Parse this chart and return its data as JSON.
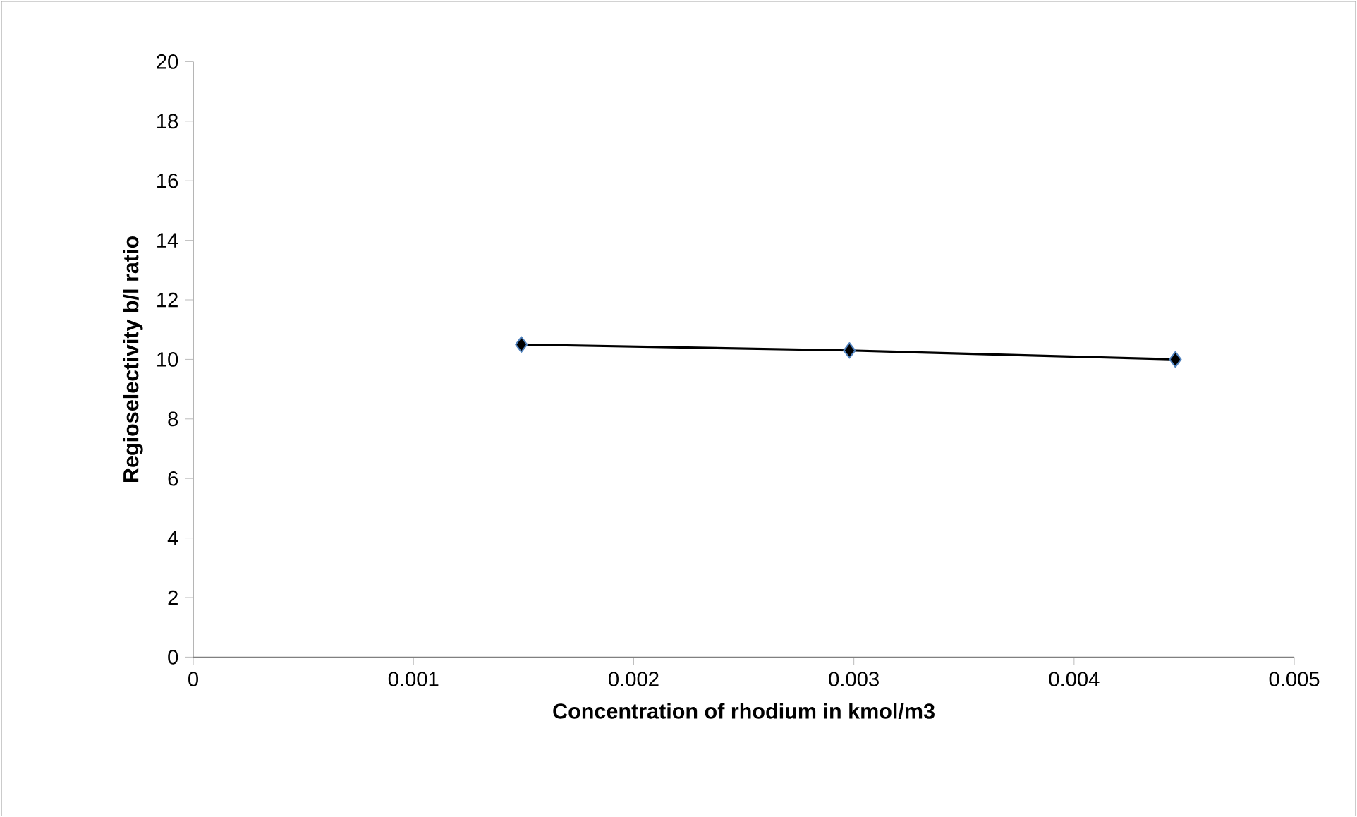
{
  "chart_data": {
    "type": "line",
    "xlabel": "Concentration of rhodium in kmol/m3",
    "ylabel": "Regioselectivity b/l ratio",
    "x": [
      0.00149,
      0.00298,
      0.00446
    ],
    "series": [
      {
        "color": "#000000",
        "values": [
          10.5,
          10.3,
          10.0
        ]
      }
    ],
    "xlim": [
      0,
      0.005
    ],
    "xticks": [
      0,
      {
        "value": 0.001,
        "label": "0.001"
      },
      {
        "value": 0.002,
        "label": "0.002"
      },
      {
        "value": 0.003,
        "label": "0.003"
      },
      {
        "value": 0.004,
        "label": "0.004"
      },
      {
        "value": 0.005,
        "label": "0.005"
      }
    ],
    "ylim": [
      0,
      20
    ],
    "yticks": [
      0,
      2,
      4,
      6,
      8,
      10,
      12,
      14,
      16,
      18,
      20
    ],
    "grid": false,
    "marker": "diamond",
    "line_style": "solid"
  }
}
